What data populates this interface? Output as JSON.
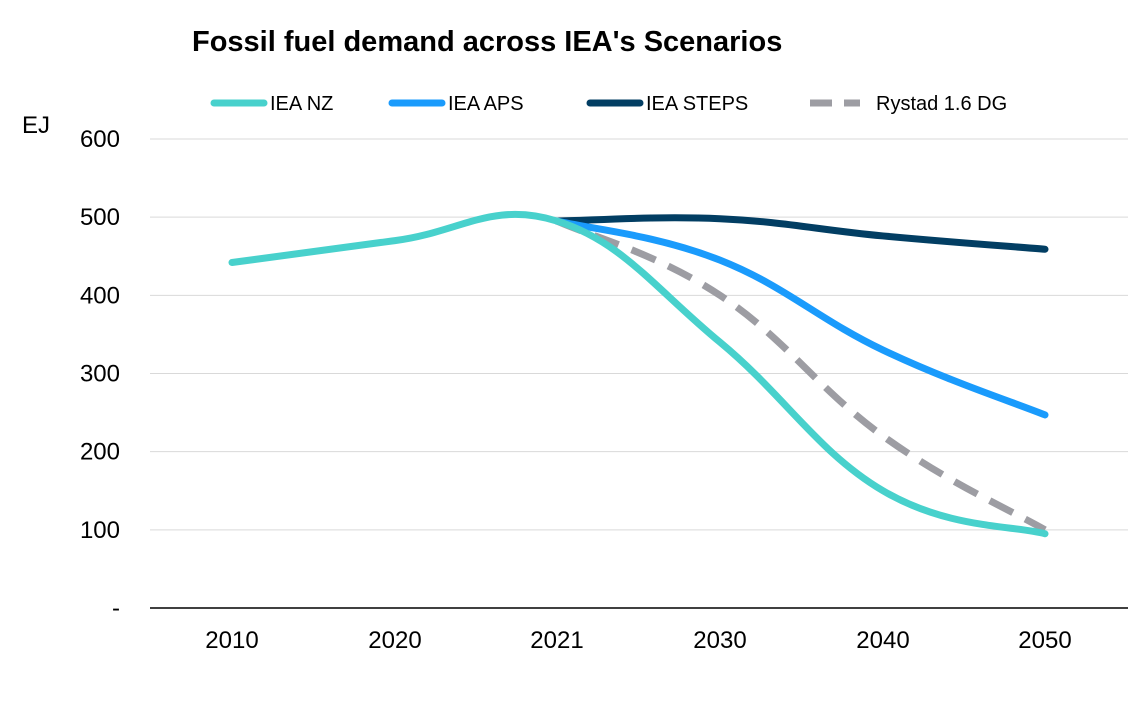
{
  "chart_data": {
    "type": "line",
    "title": "Fossil fuel demand across IEA's Scenarios",
    "ylabel": "EJ",
    "xlabel": "",
    "categories": [
      "2010",
      "2020",
      "2021",
      "2030",
      "2040",
      "2050"
    ],
    "ylim": [
      0,
      600
    ],
    "yticks": [
      {
        "value": 0,
        "label": "-"
      },
      {
        "value": 100,
        "label": "100"
      },
      {
        "value": 200,
        "label": "200"
      },
      {
        "value": 300,
        "label": "300"
      },
      {
        "value": 400,
        "label": "400"
      },
      {
        "value": 500,
        "label": "500"
      },
      {
        "value": 600,
        "label": "600"
      }
    ],
    "grid": true,
    "legend_position": "top",
    "series": [
      {
        "key": "nz",
        "name": "IEA NZ",
        "color": "#48D1CC",
        "dash": false,
        "values": [
          442,
          470,
          495,
          340,
          150,
          95
        ]
      },
      {
        "key": "aps",
        "name": "IEA APS",
        "color": "#1A9BFC",
        "dash": false,
        "values": [
          null,
          null,
          495,
          445,
          330,
          247
        ]
      },
      {
        "key": "steps",
        "name": "IEA STEPS",
        "color": "#023E63",
        "dash": false,
        "values": [
          null,
          null,
          495,
          498,
          476,
          459
        ]
      },
      {
        "key": "rystad",
        "name": "Rystad 1.6 DG",
        "color": "#9D9DA3",
        "dash": true,
        "values": [
          null,
          null,
          495,
          400,
          220,
          100
        ]
      }
    ]
  }
}
